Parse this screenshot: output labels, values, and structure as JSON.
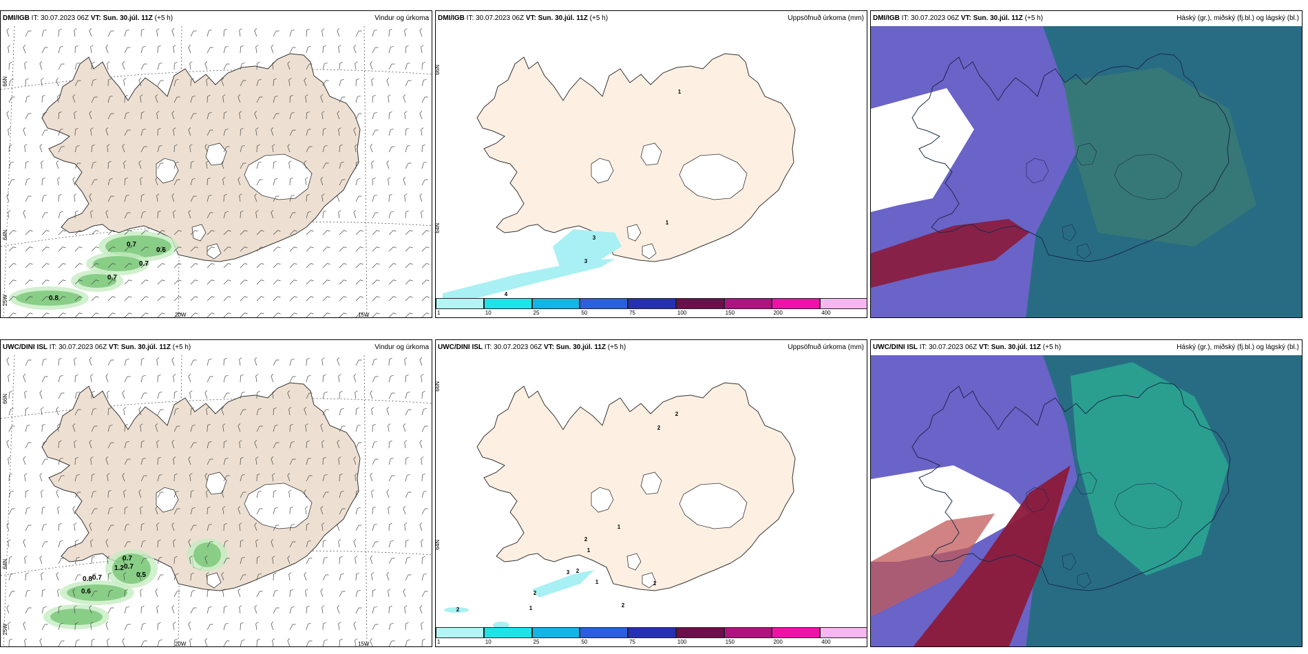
{
  "panels": [
    {
      "model": "DMI/IGB",
      "it": "IT: 30.07.2023 06Z",
      "vt_label": "VT:",
      "vt": "Sun. 30.júl. 11Z",
      "lead": "(+5 h)",
      "title": "Vindur og úrkoma",
      "type": "wind"
    },
    {
      "model": "DMI/IGB",
      "it": "IT: 30.07.2023 06Z",
      "vt_label": "VT:",
      "vt": "Sun. 30.júl. 11Z",
      "lead": "(+5 h)",
      "title": "Uppsöfnuð úrkoma (mm)",
      "type": "precip"
    },
    {
      "model": "DMI/IGB",
      "it": "IT: 30.07.2023 06Z",
      "vt_label": "VT:",
      "vt": "Sun. 30.júl. 11Z",
      "lead": "(+5 h)",
      "title": "Háský (gr.), miðský (fj.bl.) og lágský (bl.)",
      "type": "cloud"
    },
    {
      "model": "UWC/DINI ISL",
      "it": "IT: 30.07.2023 06Z",
      "vt_label": "VT:",
      "vt": "Sun. 30.júl. 11Z",
      "lead": "(+5 h)",
      "title": "Vindur og úrkoma",
      "type": "wind"
    },
    {
      "model": "UWC/DINI ISL",
      "it": "IT: 30.07.2023 06Z",
      "vt_label": "VT:",
      "vt": "Sun. 30.júl. 11Z",
      "lead": "(+5 h)",
      "title": "Uppsöfnuð úrkoma (mm)",
      "type": "precip"
    },
    {
      "model": "UWC/DINI ISL",
      "it": "IT: 30.07.2023 06Z",
      "vt_label": "VT:",
      "vt": "Sun. 30.júl. 11Z",
      "lead": "(+5 h)",
      "title": "Háský (gr.), miðský (fj.bl.) og lágský (bl.)",
      "type": "cloud"
    }
  ],
  "axis_labels": {
    "lat66": "66N",
    "lat64": "64N",
    "lon25": "25W",
    "lon20": "20W",
    "lon15": "15W"
  },
  "wind_precip_labels_top": [
    "0.7",
    "0.6",
    "0.7",
    "0.7",
    "0.8"
  ],
  "wind_precip_labels_bottom": [
    "0.7",
    "1.2",
    "0.7",
    "0.5",
    "0.8",
    "0.7",
    "0.6"
  ],
  "precip_labels_top": [
    "3",
    "3",
    "4",
    "1",
    "1"
  ],
  "precip_labels_bottom": [
    "2",
    "2",
    "1",
    "2",
    "1",
    "3",
    "2",
    "1",
    "2",
    "1",
    "1",
    "2",
    "2"
  ],
  "colorbar": {
    "ticks": [
      "1",
      "10",
      "25",
      "50",
      "75",
      "100",
      "150",
      "200",
      "400"
    ],
    "colors": [
      "#b3f5f5",
      "#1de4e8",
      "#12b6e6",
      "#2b5fe0",
      "#2630b5",
      "#6b0f4d",
      "#b0127f",
      "#f012a8",
      "#f7b6f0"
    ]
  },
  "colors": {
    "land": "#ede0d2",
    "precip_land": "#fdf0e2",
    "coast": "#333333"
  }
}
